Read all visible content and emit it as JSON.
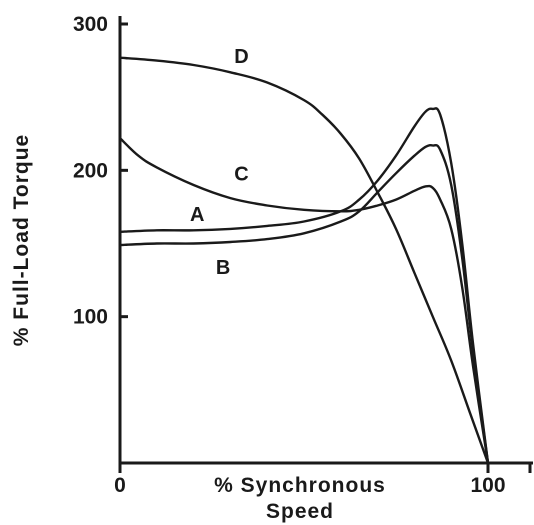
{
  "chart_data": {
    "type": "line",
    "xlabel": "% Synchronous Speed",
    "xlabel_lines": [
      "% Synchronous",
      "Speed"
    ],
    "ylabel": "% Full-Load Torque",
    "xlim": [
      0,
      100
    ],
    "ylim": [
      0,
      300
    ],
    "x_ticks": [
      {
        "value": 0,
        "label": "0"
      },
      {
        "value": 100,
        "label": "100"
      }
    ],
    "y_ticks": [
      {
        "value": 100,
        "label": "100"
      },
      {
        "value": 200,
        "label": "200"
      },
      {
        "value": 300,
        "label": "300"
      }
    ],
    "grid": false,
    "legend": "none",
    "series": [
      {
        "name": "A",
        "x": [
          0,
          10,
          20,
          30,
          40,
          50,
          60,
          65,
          70,
          75,
          80,
          83,
          85,
          87,
          90,
          93,
          96,
          100
        ],
        "y": [
          158,
          159,
          159,
          160,
          162,
          165,
          172,
          180,
          193,
          210,
          230,
          240,
          242,
          238,
          205,
          150,
          80,
          0
        ]
      },
      {
        "name": "B",
        "x": [
          0,
          10,
          20,
          30,
          40,
          50,
          60,
          65,
          70,
          75,
          80,
          83,
          85,
          87,
          90,
          93,
          96,
          100
        ],
        "y": [
          149,
          150,
          150,
          151,
          153,
          157,
          165,
          172,
          185,
          198,
          210,
          216,
          217,
          214,
          190,
          140,
          75,
          0
        ]
      },
      {
        "name": "C",
        "x": [
          0,
          5,
          10,
          20,
          30,
          40,
          50,
          60,
          65,
          70,
          75,
          80,
          83,
          85,
          87,
          90,
          93,
          96,
          100
        ],
        "y": [
          222,
          210,
          202,
          190,
          181,
          176,
          173,
          172,
          173,
          176,
          180,
          186,
          189,
          188,
          180,
          160,
          120,
          65,
          0
        ]
      },
      {
        "name": "D",
        "x": [
          0,
          10,
          20,
          30,
          40,
          50,
          55,
          60,
          65,
          70,
          75,
          80,
          85,
          90,
          95,
          100
        ],
        "y": [
          277,
          275,
          272,
          267,
          260,
          248,
          238,
          225,
          208,
          185,
          160,
          130,
          100,
          70,
          35,
          0
        ]
      }
    ],
    "curve_labels": [
      {
        "text": "D",
        "x": 33,
        "y": 278
      },
      {
        "text": "C",
        "x": 33,
        "y": 198
      },
      {
        "text": "A",
        "x": 21,
        "y": 170
      },
      {
        "text": "B",
        "x": 28,
        "y": 134
      }
    ]
  }
}
